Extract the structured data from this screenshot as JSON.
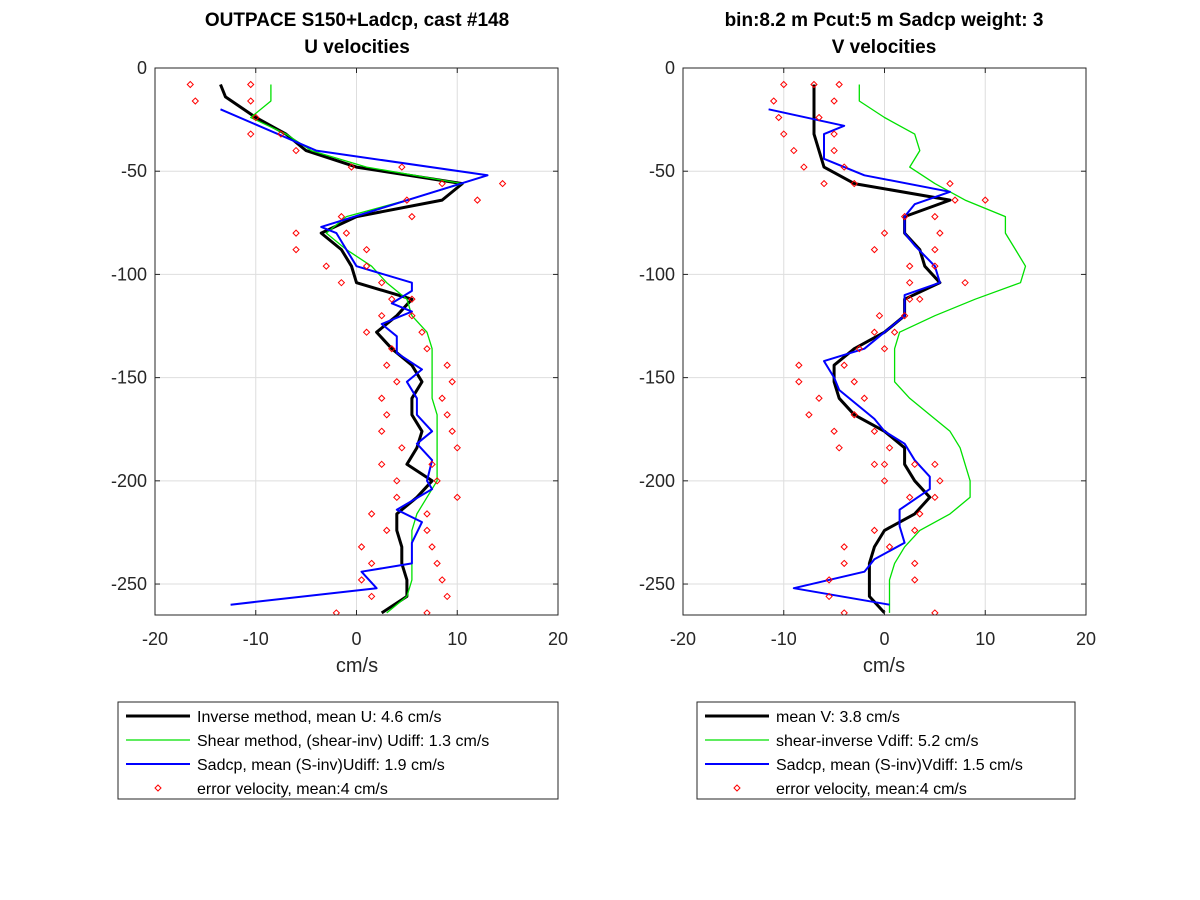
{
  "chart_data": [
    {
      "type": "line",
      "title": [
        "OUTPACE S150+Ladcp, cast #148",
        "U velocities"
      ],
      "xlabel": "cm/s",
      "ylabel": "",
      "xlim": [
        -20,
        20
      ],
      "ylim": [
        -265,
        0
      ],
      "xticks": [
        -20,
        -10,
        0,
        10,
        20
      ],
      "yticks": [
        0,
        -50,
        -100,
        -150,
        -200,
        -250
      ],
      "grid": true,
      "legend_position": "below",
      "series": [
        {
          "name": "Inverse method, mean U:  4.6 cm/s",
          "kind": "line",
          "color": "#000000",
          "y": [
            -8,
            -14,
            -24,
            -32,
            -40,
            -48,
            -56,
            -64,
            -72,
            -80,
            -88,
            -96,
            -104,
            -112,
            -120,
            -128,
            -136,
            -144,
            -152,
            -160,
            -168,
            -176,
            -184,
            -192,
            -200,
            -208,
            -216,
            -224,
            -232,
            -240,
            -248,
            -256,
            -264
          ],
          "x": [
            -13.5,
            -13,
            -10,
            -7,
            -5,
            0,
            10.5,
            8.5,
            0,
            -3.5,
            -1.5,
            -0.5,
            0,
            5.5,
            4,
            2,
            3.5,
            5.5,
            6.5,
            5.5,
            5.5,
            6.5,
            6,
            5,
            7.5,
            6,
            4,
            4,
            4.5,
            4.5,
            5,
            5,
            2.5
          ]
        },
        {
          "name": "Shear method, (shear-inv)  Udiff:  1.3 cm/s",
          "kind": "line",
          "color": "#00e000",
          "y": [
            -8,
            -16,
            -24,
            -32,
            -40,
            -48,
            -56,
            -64,
            -72,
            -80,
            -88,
            -96,
            -104,
            -112,
            -120,
            -128,
            -136,
            -144,
            -152,
            -160,
            -168,
            -176,
            -184,
            -192,
            -200,
            -208,
            -216,
            -224,
            -232,
            -240,
            -248,
            -256,
            -264
          ],
          "x": [
            -8.5,
            -8.5,
            -10.5,
            -7,
            -4.5,
            1,
            10.5,
            5,
            -1,
            -3,
            -1,
            1.5,
            3,
            5,
            5.5,
            7,
            7.5,
            7.5,
            7.5,
            7.5,
            8,
            8,
            8,
            8,
            8,
            7,
            6,
            5.5,
            5.5,
            5.5,
            5.5,
            5,
            3
          ]
        },
        {
          "name": "Sadcp, mean (S-inv)Udiff: 1.9 cm/s",
          "kind": "line",
          "color": "#0000ff",
          "y": [
            -20,
            -40,
            -52,
            -77,
            -80,
            -88,
            -96,
            -104,
            -108,
            -114,
            -118,
            -124,
            -130,
            -138,
            -146,
            -152,
            -160,
            -168,
            -176,
            -182,
            -190,
            -200,
            -204,
            -214,
            -220,
            -230,
            -240,
            -244,
            -252,
            -260
          ],
          "x": [
            -13.5,
            -4,
            13,
            -3.5,
            -2,
            -1,
            0,
            5.5,
            5.5,
            3.5,
            5.5,
            2.5,
            4,
            4,
            6.5,
            5,
            6,
            6,
            7.5,
            6,
            7.5,
            7,
            7.5,
            4,
            6.5,
            5.5,
            5.5,
            0.5,
            2,
            -12.5
          ]
        },
        {
          "name": "error velocity, mean:4 cm/s",
          "kind": "scatter",
          "color": "#ff0000",
          "points": [
            [
              -16.5,
              -8
            ],
            [
              -16,
              -16
            ],
            [
              -10.5,
              -8
            ],
            [
              -10.5,
              -16
            ],
            [
              -10,
              -24
            ],
            [
              -10.5,
              -32
            ],
            [
              -7.5,
              -32
            ],
            [
              -6,
              -40
            ],
            [
              -0.5,
              -48
            ],
            [
              4.5,
              -48
            ],
            [
              8.5,
              -56
            ],
            [
              14.5,
              -56
            ],
            [
              5,
              -64
            ],
            [
              12,
              -64
            ],
            [
              -1.5,
              -72
            ],
            [
              5.5,
              -72
            ],
            [
              -6,
              -80
            ],
            [
              -1,
              -80
            ],
            [
              -6,
              -88
            ],
            [
              1,
              -88
            ],
            [
              -3,
              -96
            ],
            [
              1,
              -96
            ],
            [
              -1.5,
              -104
            ],
            [
              2.5,
              -104
            ],
            [
              3.5,
              -112
            ],
            [
              5.5,
              -112
            ],
            [
              2.5,
              -120
            ],
            [
              5.5,
              -120
            ],
            [
              1,
              -128
            ],
            [
              6.5,
              -128
            ],
            [
              3.5,
              -136
            ],
            [
              7,
              -136
            ],
            [
              3,
              -144
            ],
            [
              9,
              -144
            ],
            [
              4,
              -152
            ],
            [
              9.5,
              -152
            ],
            [
              2.5,
              -160
            ],
            [
              8.5,
              -160
            ],
            [
              3,
              -168
            ],
            [
              9,
              -168
            ],
            [
              2.5,
              -176
            ],
            [
              9.5,
              -176
            ],
            [
              4.5,
              -184
            ],
            [
              10,
              -184
            ],
            [
              2.5,
              -192
            ],
            [
              7.5,
              -192
            ],
            [
              4,
              -200
            ],
            [
              8,
              -200
            ],
            [
              4,
              -208
            ],
            [
              10,
              -208
            ],
            [
              1.5,
              -216
            ],
            [
              7,
              -216
            ],
            [
              3,
              -224
            ],
            [
              7,
              -224
            ],
            [
              0.5,
              -232
            ],
            [
              7.5,
              -232
            ],
            [
              1.5,
              -240
            ],
            [
              8,
              -240
            ],
            [
              0.5,
              -248
            ],
            [
              8.5,
              -248
            ],
            [
              1.5,
              -256
            ],
            [
              9,
              -256
            ],
            [
              -2,
              -264
            ],
            [
              7,
              -264
            ]
          ]
        }
      ]
    },
    {
      "type": "line",
      "title": [
        "bin:8.2 m  Pcut:5 m  Sadcp weight: 3",
        "V velocities"
      ],
      "xlabel": "cm/s",
      "ylabel": "",
      "xlim": [
        -20,
        20
      ],
      "ylim": [
        -265,
        0
      ],
      "xticks": [
        -20,
        -10,
        0,
        10,
        20
      ],
      "yticks": [
        0,
        -50,
        -100,
        -150,
        -200,
        -250
      ],
      "grid": true,
      "legend_position": "below",
      "series": [
        {
          "name": "mean V:  3.8 cm/s",
          "kind": "line",
          "color": "#000000",
          "y": [
            -8,
            -16,
            -24,
            -32,
            -40,
            -48,
            -56,
            -64,
            -72,
            -80,
            -88,
            -96,
            -104,
            -112,
            -120,
            -128,
            -136,
            -144,
            -152,
            -160,
            -168,
            -176,
            -184,
            -192,
            -200,
            -208,
            -216,
            -224,
            -232,
            -240,
            -248,
            -256,
            -264
          ],
          "x": [
            -7,
            -7,
            -7,
            -7,
            -6.5,
            -6,
            -3,
            6.5,
            2,
            2,
            3.5,
            4,
            5.5,
            2,
            2,
            0,
            -3,
            -5,
            -5,
            -4.5,
            -3,
            0,
            2,
            2,
            3,
            4.5,
            3,
            0,
            -1,
            -1.5,
            -1.5,
            -1.5,
            0
          ]
        },
        {
          "name": "shear-inverse Vdiff:  5.2 cm/s",
          "kind": "line",
          "color": "#00e000",
          "y": [
            -8,
            -16,
            -24,
            -32,
            -40,
            -48,
            -56,
            -64,
            -72,
            -80,
            -88,
            -96,
            -104,
            -112,
            -120,
            -128,
            -136,
            -144,
            -152,
            -160,
            -168,
            -176,
            -184,
            -192,
            -200,
            -208,
            -216,
            -224,
            -232,
            -240,
            -248,
            -256,
            -264
          ],
          "x": [
            -2.5,
            -2.5,
            0,
            3,
            3.5,
            2.5,
            5,
            8,
            12,
            12,
            13,
            14,
            13.5,
            9,
            5,
            1.5,
            1,
            1,
            1,
            2.5,
            4.5,
            6.5,
            7.5,
            8,
            8.5,
            8.5,
            6.5,
            3.5,
            2,
            1,
            0.5,
            0.5,
            0.5
          ]
        },
        {
          "name": "Sadcp, mean (S-inv)Vdiff: 1.5 cm/s",
          "kind": "line",
          "color": "#0000ff",
          "y": [
            -20,
            -28,
            -32,
            -44,
            -48,
            -52,
            -60,
            -66,
            -72,
            -80,
            -86,
            -96,
            -104,
            -110,
            -120,
            -128,
            -136,
            -142,
            -150,
            -156,
            -162,
            -170,
            -176,
            -182,
            -190,
            -198,
            -204,
            -214,
            -222,
            -230,
            -238,
            -244,
            -252,
            -260
          ],
          "x": [
            -11.5,
            -4,
            -6,
            -6,
            -4,
            -2,
            6.5,
            3,
            2,
            2,
            3,
            5,
            5.5,
            2,
            2,
            0,
            -2,
            -6,
            -5,
            -4.5,
            -3,
            -1,
            0,
            2,
            3,
            4.5,
            4.5,
            1.5,
            1.5,
            2,
            -1,
            -2,
            -9,
            0.5
          ]
        },
        {
          "name": "error velocity, mean:4 cm/s",
          "kind": "scatter",
          "color": "#ff0000",
          "points": [
            [
              -10,
              -8
            ],
            [
              -7,
              -8
            ],
            [
              -4.5,
              -8
            ],
            [
              -11,
              -16
            ],
            [
              -5,
              -16
            ],
            [
              -10.5,
              -24
            ],
            [
              -6.5,
              -24
            ],
            [
              -10,
              -32
            ],
            [
              -5,
              -32
            ],
            [
              -9,
              -40
            ],
            [
              -5,
              -40
            ],
            [
              -8,
              -48
            ],
            [
              -4,
              -48
            ],
            [
              -6,
              -56
            ],
            [
              -3,
              -56
            ],
            [
              6.5,
              -56
            ],
            [
              7,
              -64
            ],
            [
              10,
              -64
            ],
            [
              2,
              -72
            ],
            [
              5,
              -72
            ],
            [
              0,
              -80
            ],
            [
              5.5,
              -80
            ],
            [
              -1,
              -88
            ],
            [
              5,
              -88
            ],
            [
              2.5,
              -96
            ],
            [
              5,
              -96
            ],
            [
              2.5,
              -104
            ],
            [
              8,
              -104
            ],
            [
              2.5,
              -112
            ],
            [
              3.5,
              -112
            ],
            [
              -0.5,
              -120
            ],
            [
              2,
              -120
            ],
            [
              -1,
              -128
            ],
            [
              1,
              -128
            ],
            [
              -2.5,
              -136
            ],
            [
              0,
              -136
            ],
            [
              -8.5,
              -144
            ],
            [
              -4,
              -144
            ],
            [
              -8.5,
              -152
            ],
            [
              -3,
              -152
            ],
            [
              -6.5,
              -160
            ],
            [
              -2,
              -160
            ],
            [
              -7.5,
              -168
            ],
            [
              -3,
              -168
            ],
            [
              -5,
              -176
            ],
            [
              -1,
              -176
            ],
            [
              -4.5,
              -184
            ],
            [
              0.5,
              -184
            ],
            [
              -1,
              -192
            ],
            [
              0,
              -192
            ],
            [
              3,
              -192
            ],
            [
              5,
              -192
            ],
            [
              0,
              -200
            ],
            [
              5.5,
              -200
            ],
            [
              2.5,
              -208
            ],
            [
              5,
              -208
            ],
            [
              3.5,
              -216
            ],
            [
              -1,
              -224
            ],
            [
              3,
              -224
            ],
            [
              -4,
              -232
            ],
            [
              0.5,
              -232
            ],
            [
              -4,
              -240
            ],
            [
              3,
              -240
            ],
            [
              -5.5,
              -248
            ],
            [
              3,
              -248
            ],
            [
              -5.5,
              -256
            ],
            [
              -4,
              -264
            ],
            [
              5,
              -264
            ]
          ]
        }
      ]
    }
  ]
}
